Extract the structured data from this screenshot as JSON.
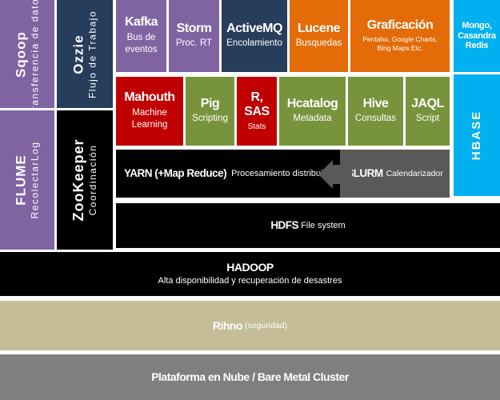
{
  "sqoop": {
    "title": "Sqoop",
    "sub": "Transferencia de datos"
  },
  "ozzie": {
    "title": "Ozzie",
    "sub": "Flujo de Trabajo"
  },
  "flume": {
    "title": "FLUME",
    "sub": "RecolectarLog"
  },
  "zookeeper": {
    "title": "ZooKeeper",
    "sub": "Coordinación"
  },
  "kafka": {
    "title": "Kafka",
    "sub": "Bus de eventos"
  },
  "storm": {
    "title": "Storm",
    "sub": "Proc. RT"
  },
  "activemq": {
    "title": "ActiveMQ",
    "sub": "Encolamiento"
  },
  "lucene": {
    "title": "Lucene",
    "sub": "Busquedas"
  },
  "graficacion": {
    "title": "Graficación",
    "sub": "Pentaho, Google Charts, Bing Maps Etc."
  },
  "mongo": {
    "title": "Mongo, Casandra Redis"
  },
  "hbase": {
    "title": "HBASE"
  },
  "mahout": {
    "title": "Mahouth",
    "sub1": "Machine",
    "sub2": "Learning"
  },
  "pig": {
    "title": "Pig",
    "sub": "Scripting"
  },
  "rsas": {
    "title1": "R,",
    "title2": "SAS",
    "sub": "Stats"
  },
  "hcatalog": {
    "title": "Hcatalog",
    "sub": "Metadata"
  },
  "hive": {
    "title": "Hive",
    "sub": "Consultas"
  },
  "jaql": {
    "title": "JAQL",
    "sub": "Script"
  },
  "yarn": {
    "title": "YARN (+Map Reduce)",
    "sub": "Procesamiento distribuido"
  },
  "slurm": {
    "title": "SLURM",
    "sub": "Calendarizador"
  },
  "hdfs": {
    "title": "HDFS",
    "sub": "File system"
  },
  "hadoop": {
    "title": "HADOOP",
    "sub": "Alta disponibilidad y recuperación de desastres"
  },
  "rhino": {
    "title": "Rihno",
    "sub": "(seguridad)"
  },
  "platform": {
    "title": "Plataforma en Nube / Bare Metal Cluster"
  },
  "colors": {
    "purple": "#8064a2",
    "navy": "#263d5b",
    "orange": "#e36c09",
    "red": "#c00000",
    "green": "#77933c",
    "blue": "#00b0f0",
    "tan": "#c4bd97",
    "gray": "#7f7f7f"
  }
}
